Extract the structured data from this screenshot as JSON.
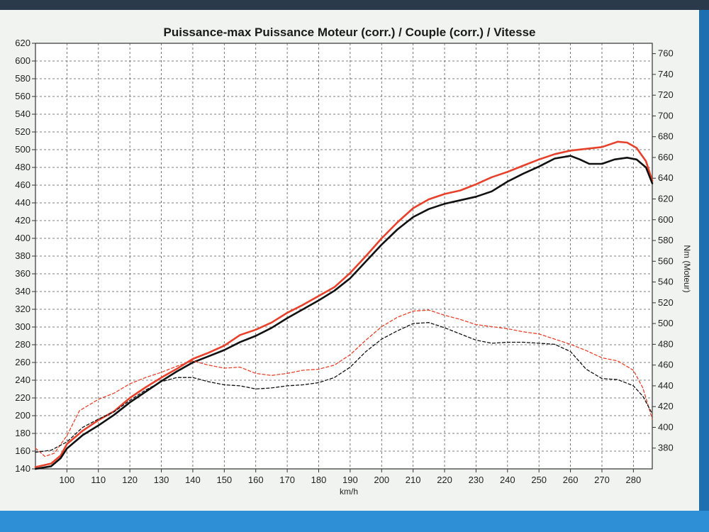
{
  "chart_data": {
    "type": "line",
    "title": "Puissance-max Puissance Moteur (corr.) / Couple (corr.) / Vitesse",
    "xlabel": "km/h",
    "ylabel_right": "Nm (Moteur)",
    "xlim": [
      90,
      286
    ],
    "ylim_left": [
      140,
      620
    ],
    "ylim_right": [
      360,
      770
    ],
    "x_ticks": [
      100,
      110,
      120,
      130,
      140,
      150,
      160,
      170,
      180,
      190,
      200,
      210,
      220,
      230,
      240,
      250,
      260,
      270,
      280
    ],
    "y_left_ticks": [
      140,
      160,
      180,
      200,
      220,
      240,
      260,
      280,
      300,
      320,
      340,
      360,
      380,
      400,
      420,
      440,
      460,
      480,
      500,
      520,
      540,
      560,
      580,
      600,
      620
    ],
    "y_right_ticks": [
      380,
      400,
      420,
      440,
      460,
      480,
      500,
      520,
      540,
      560,
      580,
      600,
      620,
      640,
      660,
      680,
      700,
      720,
      740,
      760
    ],
    "grid": true,
    "series": [
      {
        "axis": "left",
        "style": "solid",
        "color": "#e8412b",
        "points": [
          [
            90,
            142
          ],
          [
            95,
            146
          ],
          [
            98,
            155
          ],
          [
            100,
            168
          ],
          [
            105,
            183
          ],
          [
            110,
            195
          ],
          [
            115,
            205
          ],
          [
            120,
            220
          ],
          [
            125,
            232
          ],
          [
            130,
            243
          ],
          [
            135,
            253
          ],
          [
            140,
            264
          ],
          [
            145,
            271
          ],
          [
            150,
            279
          ],
          [
            155,
            291
          ],
          [
            160,
            297
          ],
          [
            165,
            305
          ],
          [
            170,
            316
          ],
          [
            175,
            325
          ],
          [
            180,
            335
          ],
          [
            185,
            345
          ],
          [
            190,
            361
          ],
          [
            195,
            380
          ],
          [
            200,
            400
          ],
          [
            205,
            418
          ],
          [
            210,
            434
          ],
          [
            215,
            444
          ],
          [
            220,
            450
          ],
          [
            225,
            454
          ],
          [
            230,
            461
          ],
          [
            235,
            469
          ],
          [
            240,
            475
          ],
          [
            245,
            482
          ],
          [
            250,
            489
          ],
          [
            255,
            495
          ],
          [
            260,
            499
          ],
          [
            265,
            501
          ],
          [
            270,
            503
          ],
          [
            275,
            509
          ],
          [
            278,
            508
          ],
          [
            281,
            502
          ],
          [
            284,
            487
          ],
          [
            286,
            465
          ]
        ]
      },
      {
        "axis": "left",
        "style": "solid",
        "color": "#111111",
        "points": [
          [
            90,
            140
          ],
          [
            95,
            143
          ],
          [
            98,
            152
          ],
          [
            100,
            163
          ],
          [
            105,
            178
          ],
          [
            110,
            189
          ],
          [
            115,
            201
          ],
          [
            120,
            215
          ],
          [
            125,
            227
          ],
          [
            130,
            239
          ],
          [
            135,
            250
          ],
          [
            140,
            260
          ],
          [
            145,
            267
          ],
          [
            150,
            274
          ],
          [
            155,
            283
          ],
          [
            160,
            290
          ],
          [
            165,
            299
          ],
          [
            170,
            310
          ],
          [
            175,
            320
          ],
          [
            180,
            330
          ],
          [
            185,
            341
          ],
          [
            190,
            355
          ],
          [
            195,
            374
          ],
          [
            200,
            393
          ],
          [
            205,
            410
          ],
          [
            210,
            424
          ],
          [
            215,
            433
          ],
          [
            220,
            439
          ],
          [
            225,
            443
          ],
          [
            230,
            447
          ],
          [
            235,
            453
          ],
          [
            240,
            464
          ],
          [
            245,
            473
          ],
          [
            250,
            481
          ],
          [
            255,
            490
          ],
          [
            260,
            493
          ],
          [
            263,
            489
          ],
          [
            266,
            484
          ],
          [
            270,
            484
          ],
          [
            274,
            489
          ],
          [
            278,
            491
          ],
          [
            281,
            489
          ],
          [
            284,
            480
          ],
          [
            286,
            462
          ]
        ]
      },
      {
        "axis": "right",
        "style": "dashed",
        "color": "#e8412b",
        "points": [
          [
            90,
            380
          ],
          [
            93,
            372
          ],
          [
            96,
            375
          ],
          [
            100,
            392
          ],
          [
            104,
            416
          ],
          [
            110,
            427
          ],
          [
            115,
            433
          ],
          [
            120,
            442
          ],
          [
            125,
            448
          ],
          [
            130,
            453
          ],
          [
            135,
            459
          ],
          [
            140,
            464
          ],
          [
            145,
            460
          ],
          [
            150,
            457
          ],
          [
            155,
            458
          ],
          [
            160,
            452
          ],
          [
            165,
            450
          ],
          [
            170,
            452
          ],
          [
            175,
            455
          ],
          [
            180,
            456
          ],
          [
            185,
            460
          ],
          [
            190,
            470
          ],
          [
            195,
            484
          ],
          [
            200,
            497
          ],
          [
            205,
            506
          ],
          [
            210,
            512
          ],
          [
            215,
            513
          ],
          [
            220,
            508
          ],
          [
            225,
            504
          ],
          [
            230,
            499
          ],
          [
            235,
            497
          ],
          [
            240,
            495
          ],
          [
            245,
            492
          ],
          [
            250,
            490
          ],
          [
            255,
            485
          ],
          [
            260,
            480
          ],
          [
            265,
            474
          ],
          [
            270,
            467
          ],
          [
            275,
            464
          ],
          [
            280,
            455
          ],
          [
            283,
            438
          ],
          [
            286,
            408
          ]
        ]
      },
      {
        "axis": "right",
        "style": "dashed",
        "color": "#111111",
        "points": [
          [
            90,
            376
          ],
          [
            95,
            378
          ],
          [
            100,
            386
          ],
          [
            105,
            400
          ],
          [
            110,
            408
          ],
          [
            115,
            415
          ],
          [
            120,
            426
          ],
          [
            125,
            436
          ],
          [
            130,
            444
          ],
          [
            135,
            448
          ],
          [
            140,
            448
          ],
          [
            145,
            444
          ],
          [
            150,
            441
          ],
          [
            155,
            440
          ],
          [
            160,
            437
          ],
          [
            165,
            438
          ],
          [
            170,
            440
          ],
          [
            175,
            441
          ],
          [
            180,
            443
          ],
          [
            185,
            448
          ],
          [
            190,
            458
          ],
          [
            195,
            473
          ],
          [
            200,
            485
          ],
          [
            205,
            493
          ],
          [
            210,
            500
          ],
          [
            215,
            501
          ],
          [
            220,
            496
          ],
          [
            225,
            490
          ],
          [
            230,
            484
          ],
          [
            235,
            481
          ],
          [
            240,
            482
          ],
          [
            245,
            482
          ],
          [
            250,
            481
          ],
          [
            255,
            480
          ],
          [
            260,
            473
          ],
          [
            265,
            456
          ],
          [
            270,
            447
          ],
          [
            275,
            446
          ],
          [
            280,
            440
          ],
          [
            283,
            430
          ],
          [
            286,
            413
          ]
        ]
      }
    ]
  }
}
